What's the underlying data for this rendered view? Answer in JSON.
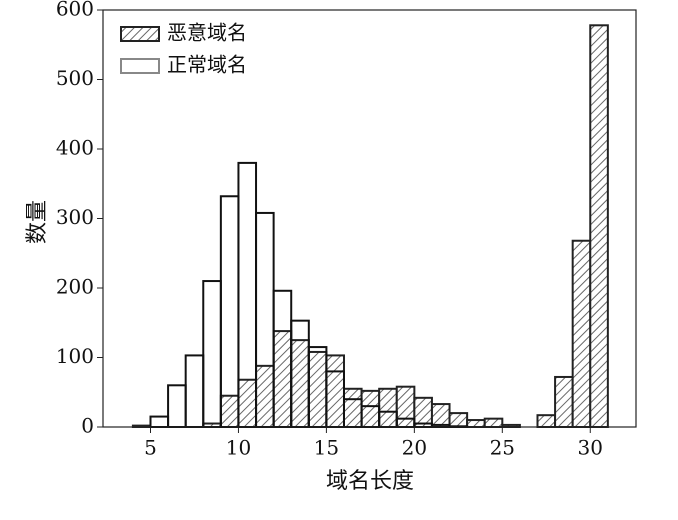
{
  "chart_data": {
    "type": "histogram",
    "x_label": "域名长度",
    "y_label": "数量",
    "bins": [
      4,
      5,
      6,
      7,
      8,
      9,
      10,
      11,
      12,
      13,
      14,
      15,
      16,
      17,
      18,
      19,
      20,
      21,
      22,
      23,
      24,
      25,
      26,
      27,
      28,
      29,
      30,
      31
    ],
    "series": [
      {
        "name": "恶意域名",
        "color": "#222222",
        "hatch": true,
        "values": [
          2,
          0,
          0,
          0,
          5,
          45,
          68,
          88,
          138,
          125,
          108,
          103,
          55,
          52,
          55,
          58,
          42,
          33,
          20,
          10,
          12,
          3,
          0,
          17,
          72,
          268,
          578
        ]
      },
      {
        "name": "正常域名",
        "color": "#111111",
        "hatch": false,
        "values": [
          0,
          15,
          60,
          103,
          210,
          332,
          380,
          308,
          196,
          153,
          115,
          80,
          40,
          30,
          22,
          12,
          5,
          3,
          1,
          0,
          0,
          0,
          0,
          0,
          0,
          0,
          0
        ]
      }
    ],
    "xlim": [
      2.3,
      32.6
    ],
    "ylim": [
      0,
      600
    ],
    "xticks": [
      5,
      10,
      15,
      20,
      25,
      30
    ],
    "yticks": [
      0,
      100,
      200,
      300,
      400,
      500,
      600
    ],
    "legend": "upper left"
  }
}
